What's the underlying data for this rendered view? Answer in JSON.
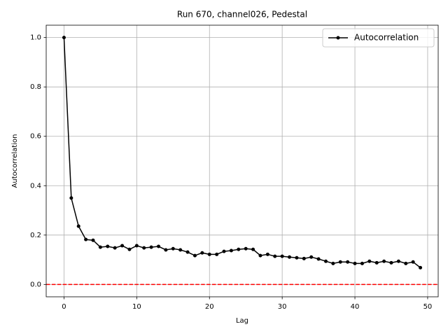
{
  "chart_data": {
    "type": "line",
    "title": "Run 670, channel026, Pedestal",
    "xlabel": "Lag",
    "ylabel": "Autocorrelation",
    "x": [
      0,
      1,
      2,
      3,
      4,
      5,
      6,
      7,
      8,
      9,
      10,
      11,
      12,
      13,
      14,
      15,
      16,
      17,
      18,
      19,
      20,
      21,
      22,
      23,
      24,
      25,
      26,
      27,
      28,
      29,
      30,
      31,
      32,
      33,
      34,
      35,
      36,
      37,
      38,
      39,
      40,
      41,
      42,
      43,
      44,
      45,
      46,
      47,
      48,
      49
    ],
    "series": [
      {
        "name": "Autocorrelation",
        "color": "#000000",
        "values": [
          1.0,
          0.35,
          0.236,
          0.182,
          0.179,
          0.151,
          0.154,
          0.148,
          0.157,
          0.142,
          0.157,
          0.148,
          0.151,
          0.154,
          0.14,
          0.145,
          0.14,
          0.131,
          0.117,
          0.128,
          0.122,
          0.122,
          0.134,
          0.137,
          0.142,
          0.145,
          0.142,
          0.117,
          0.122,
          0.114,
          0.114,
          0.111,
          0.108,
          0.105,
          0.111,
          0.103,
          0.094,
          0.085,
          0.091,
          0.091,
          0.085,
          0.085,
          0.094,
          0.088,
          0.094,
          0.088,
          0.094,
          0.085,
          0.091,
          0.068
        ]
      }
    ],
    "reference_line": {
      "y": 0,
      "color": "#ff0000"
    },
    "xlim": [
      -2.45,
      51.45
    ],
    "xticks": [
      0,
      10,
      20,
      30,
      40,
      50
    ],
    "ylim": [
      -0.05,
      1.05
    ],
    "yticks": [
      {
        "value": 0,
        "label": "0.0"
      },
      {
        "value": 0.2,
        "label": "0.2"
      },
      {
        "value": 0.4,
        "label": "0.4"
      },
      {
        "value": 0.6,
        "label": "0.6"
      },
      {
        "value": 0.8,
        "label": "0.8"
      },
      {
        "value": 1.0,
        "label": "1.0"
      }
    ],
    "grid": true,
    "legend": "upper right"
  }
}
